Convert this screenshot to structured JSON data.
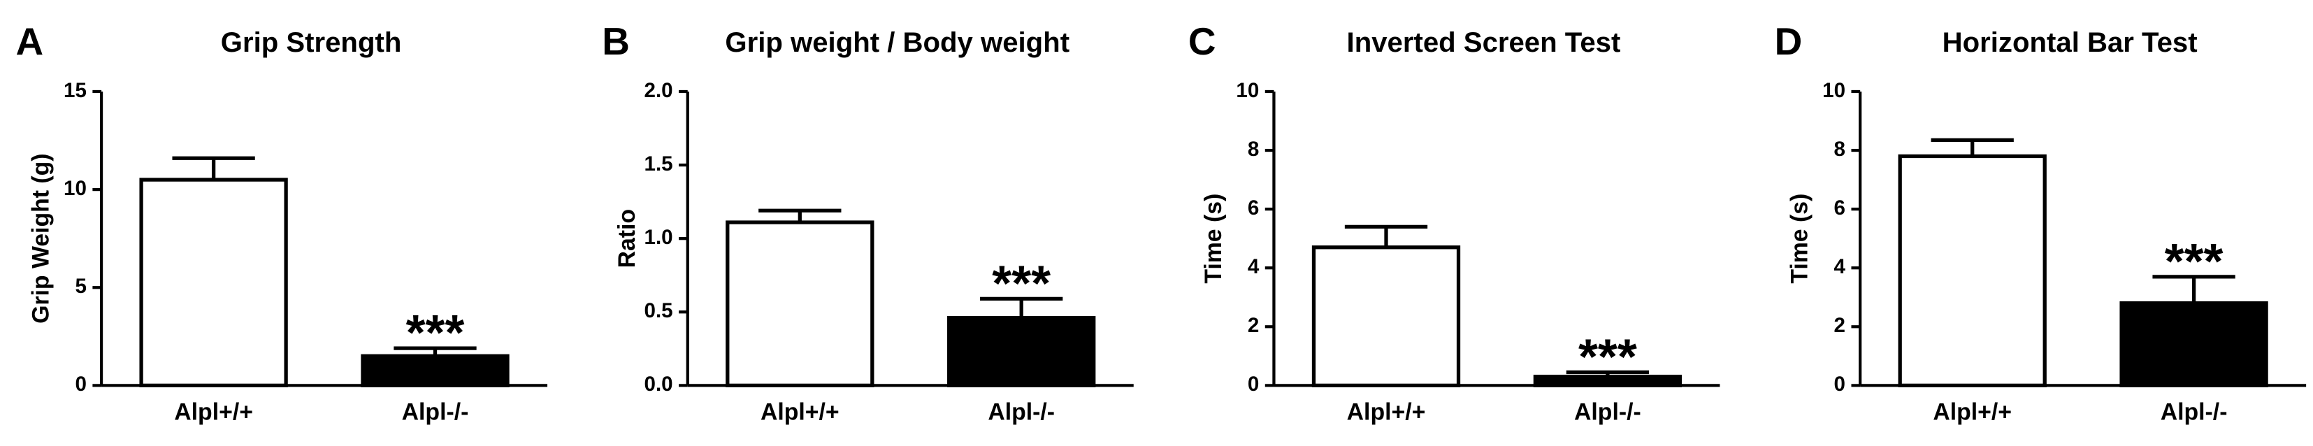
{
  "chart_data": [
    {
      "type": "bar",
      "panel": "A",
      "title": "Grip Strength",
      "y_label": "Grip Weight (g)",
      "categories": [
        "Alpl+/+",
        "Alpl-/-"
      ],
      "values": [
        10.5,
        1.5
      ],
      "errors": [
        1.1,
        0.4
      ],
      "colors": [
        "#ffffff",
        "#000000"
      ],
      "value_annotations": [
        null,
        "***"
      ],
      "ylim": [
        0,
        15
      ],
      "yticks": [
        0,
        5,
        10,
        15
      ]
    },
    {
      "type": "bar",
      "panel": "B",
      "title": "Grip weight / Body weight",
      "y_label": "Ratio",
      "categories": [
        "Alpl+/+",
        "Alpl-/-"
      ],
      "values": [
        1.11,
        0.46
      ],
      "errors": [
        0.08,
        0.13
      ],
      "colors": [
        "#ffffff",
        "#000000"
      ],
      "value_annotations": [
        null,
        "***"
      ],
      "ylim": [
        0,
        2
      ],
      "yticks": [
        {
          "value": 0,
          "label": "0.0"
        },
        0.5,
        {
          "value": 1,
          "label": "1.0"
        },
        1.5,
        {
          "value": 2,
          "label": "2.0"
        }
      ]
    },
    {
      "type": "bar",
      "panel": "C",
      "title": "Inverted Screen Test",
      "y_label": "Time (s)",
      "categories": [
        "Alpl+/+",
        "Alpl-/-"
      ],
      "values": [
        4.7,
        0.3
      ],
      "errors": [
        0.7,
        0.15
      ],
      "colors": [
        "#ffffff",
        "#000000"
      ],
      "value_annotations": [
        null,
        "***"
      ],
      "ylim": [
        0,
        10
      ],
      "yticks": [
        0,
        2,
        4,
        6,
        8,
        10
      ]
    },
    {
      "type": "bar",
      "panel": "D",
      "title": "Horizontal Bar Test",
      "y_label": "Time (s)",
      "categories": [
        "Alpl+/+",
        "Alpl-/-"
      ],
      "values": [
        7.8,
        2.8
      ],
      "errors": [
        0.55,
        0.9
      ],
      "colors": [
        "#ffffff",
        "#000000"
      ],
      "value_annotations": [
        null,
        "***"
      ],
      "ylim": [
        0,
        10
      ],
      "yticks": [
        0,
        2,
        4,
        6,
        8,
        10
      ]
    }
  ]
}
